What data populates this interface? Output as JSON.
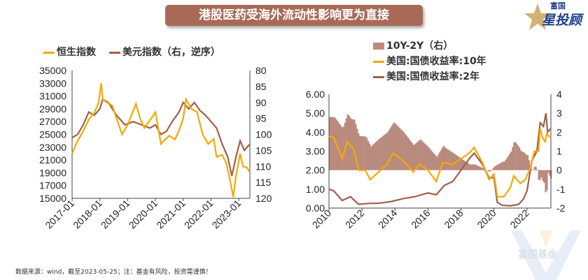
{
  "title": "港股医药受海外流动性影响更为直接",
  "logo": {
    "line1": "富国",
    "line2": "星投顾"
  },
  "watermark": "富国基金",
  "footer": "数据来源：wind，截至2023-05-25；注：基金有风险，投资需谨慎！",
  "colors": {
    "hsi": "#f5a800",
    "dxy": "#a0604a",
    "spread": "#b98b7e",
    "y10": "#f5a800",
    "y2": "#a0604a"
  },
  "chart_data": [
    {
      "type": "line",
      "legend": [
        "恒生指数",
        "美元指数（右，逆序）"
      ],
      "ylim": [
        15000,
        35000
      ],
      "yticks": [
        "35000",
        "33000",
        "31000",
        "29000",
        "27000",
        "25000",
        "23000",
        "21000",
        "19000",
        "17000",
        "15000"
      ],
      "y2lim": [
        80,
        120
      ],
      "y2_inverted": true,
      "y2ticks": [
        "80",
        "85",
        "90",
        "95",
        "100",
        "105",
        "110",
        "115",
        "120"
      ],
      "xticks": [
        "2017-01",
        "2018-01",
        "2019-01",
        "2020-01",
        "2021-01",
        "2022-01",
        "2023-01"
      ],
      "xrange": [
        2017.0,
        2023.4
      ],
      "series": [
        {
          "name": "恒生指数",
          "axis": "left",
          "x": [
            2017.0,
            2017.2,
            2017.4,
            2017.6,
            2017.8,
            2017.95,
            2018.05,
            2018.1,
            2018.25,
            2018.45,
            2018.6,
            2018.8,
            2019.0,
            2019.3,
            2019.45,
            2019.6,
            2019.85,
            2020.0,
            2020.2,
            2020.3,
            2020.5,
            2020.7,
            2020.85,
            2021.0,
            2021.1,
            2021.3,
            2021.5,
            2021.7,
            2021.9,
            2022.1,
            2022.2,
            2022.4,
            2022.55,
            2022.7,
            2022.8,
            2022.9,
            2023.05,
            2023.15,
            2023.3,
            2023.4
          ],
          "values": [
            22000,
            24000,
            25500,
            27300,
            28400,
            29900,
            33000,
            30500,
            30000,
            29500,
            27500,
            25000,
            26500,
            29800,
            27500,
            26000,
            27500,
            28500,
            23500,
            24000,
            24800,
            24200,
            25600,
            27500,
            30500,
            29000,
            28500,
            25000,
            23500,
            24300,
            21500,
            21800,
            20500,
            17500,
            15200,
            18500,
            22000,
            20000,
            19800,
            19000
          ]
        },
        {
          "name": "美元指数（右，逆序）",
          "axis": "right",
          "x": [
            2017.0,
            2017.2,
            2017.4,
            2017.6,
            2017.8,
            2018.0,
            2018.1,
            2018.3,
            2018.6,
            2018.9,
            2019.2,
            2019.5,
            2019.8,
            2020.0,
            2020.2,
            2020.4,
            2020.6,
            2020.85,
            2021.0,
            2021.2,
            2021.4,
            2021.6,
            2021.8,
            2022.0,
            2022.2,
            2022.4,
            2022.6,
            2022.75,
            2022.9,
            2023.05,
            2023.2,
            2023.4
          ],
          "values": [
            101,
            100,
            97,
            93,
            94,
            92,
            89,
            90,
            94,
            97,
            96,
            97,
            98,
            97,
            100,
            99,
            96,
            93,
            90,
            92,
            90,
            92.5,
            94,
            96,
            98,
            103,
            107,
            113,
            107,
            102,
            105,
            103
          ]
        }
      ]
    },
    {
      "type": "line+area",
      "legend": [
        "10Y-2Y（右）",
        "美国:国债收益率:10年",
        "美国:国债收益率:2年"
      ],
      "ylim": [
        0,
        6
      ],
      "yticks": [
        "6.00",
        "5.00",
        "4.00",
        "3.00",
        "2.00",
        "1.00",
        "0.00"
      ],
      "y2lim": [
        -2,
        4
      ],
      "y2ticks": [
        "4",
        "3",
        "2",
        "1",
        "0",
        "-1",
        "-2"
      ],
      "xticks": [
        "2010",
        "2012",
        "2014",
        "2016",
        "2018",
        "2020",
        "2022"
      ],
      "xrange": [
        2010,
        2023.45
      ],
      "series": [
        {
          "name": "美国:国债收益率:10年",
          "x": [
            2010,
            2010.3,
            2010.8,
            2011.1,
            2011.5,
            2011.8,
            2012.2,
            2012.5,
            2013,
            2013.5,
            2013.9,
            2014.5,
            2015.1,
            2015.5,
            2016,
            2016.5,
            2016.9,
            2017.5,
            2018,
            2018.5,
            2018.8,
            2019.3,
            2019.7,
            2020.0,
            2020.2,
            2020.6,
            2021.0,
            2021.2,
            2021.6,
            2021.9,
            2022.2,
            2022.45,
            2022.7,
            2022.8,
            2022.95,
            2023.1,
            2023.2,
            2023.45
          ],
          "values": [
            3.8,
            3.7,
            2.6,
            3.5,
            3.1,
            2.0,
            2.0,
            1.5,
            1.9,
            2.3,
            2.9,
            2.5,
            1.9,
            2.3,
            2.0,
            1.4,
            2.4,
            2.3,
            2.6,
            2.9,
            3.2,
            2.4,
            1.5,
            1.8,
            0.6,
            0.6,
            1.1,
            1.7,
            1.3,
            1.5,
            2.1,
            3.0,
            3.0,
            4.2,
            3.7,
            3.5,
            3.9,
            3.7
          ]
        },
        {
          "name": "美国:国债收益率:2年",
          "x": [
            2010,
            2010.3,
            2010.8,
            2011.3,
            2011.8,
            2012.5,
            2013,
            2013.8,
            2014.5,
            2015.2,
            2016,
            2016.5,
            2017,
            2017.5,
            2018,
            2018.5,
            2018.8,
            2019.3,
            2019.7,
            2020.0,
            2020.2,
            2020.5,
            2021,
            2021.5,
            2021.8,
            2022.0,
            2022.3,
            2022.6,
            2022.8,
            2023.0,
            2023.15,
            2023.25,
            2023.45
          ],
          "values": [
            1.0,
            0.9,
            0.4,
            0.6,
            0.2,
            0.25,
            0.25,
            0.35,
            0.5,
            0.6,
            0.8,
            0.7,
            1.2,
            1.4,
            2.0,
            2.6,
            2.9,
            2.3,
            1.6,
            1.6,
            0.3,
            0.15,
            0.12,
            0.2,
            0.5,
            0.9,
            2.5,
            3.0,
            4.5,
            4.3,
            5.0,
            4.0,
            4.2
          ]
        }
      ],
      "spread_note": "10Y-2Y computed as difference of series"
    }
  ]
}
